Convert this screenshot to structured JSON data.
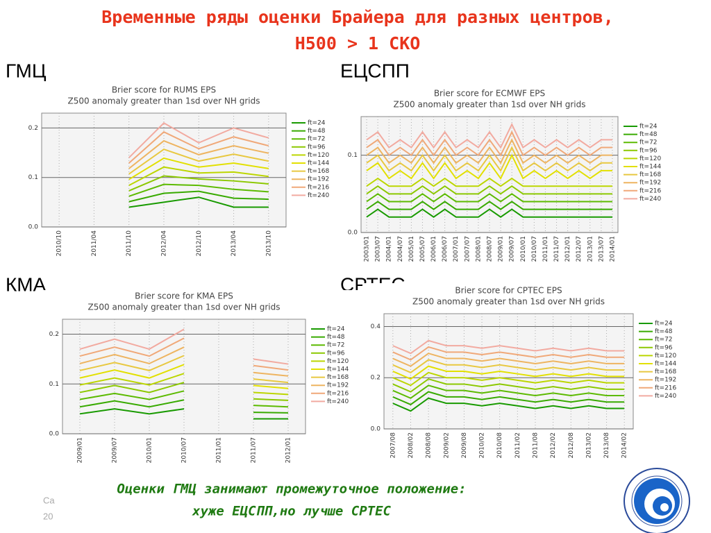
{
  "slide": {
    "title": [
      "Временные ряды оценки Брайера для разных центров,",
      "Н500 > 1 СКО"
    ],
    "centers": [
      "ГМЦ",
      "ЕЦСПП",
      "КМА",
      "СРТЕС"
    ],
    "conclusion": [
      "Оценки ГМЦ занимают промежуточное положение:",
      "хуже ЕЦСПП,но лучше СРТЕС"
    ],
    "footer": [
      "Ca",
      "20"
    ]
  },
  "chart_data": [
    {
      "type": "line",
      "title": "Brier score for RUMS EPS",
      "subtitle": "Z500 anomaly greater than 1sd over NH grids",
      "categories": [
        "2010/10",
        "2011/04",
        "2011/10",
        "2012/04",
        "2012/10",
        "2013/04",
        "2013/10"
      ],
      "ylim": [
        0,
        0.23
      ],
      "yticks": [
        {
          "value": 0,
          "label": "0.0"
        },
        0.1,
        0.2
      ],
      "grid": true,
      "series": [
        {
          "name": "ft=24",
          "color": "#189a00",
          "values": [
            null,
            null,
            0.04,
            0.05,
            0.06,
            0.04,
            0.04
          ]
        },
        {
          "name": "ft=48",
          "color": "#38aa00",
          "values": [
            null,
            null,
            0.051,
            0.068,
            0.072,
            0.058,
            0.056
          ]
        },
        {
          "name": "ft=72",
          "color": "#5cba00",
          "values": [
            null,
            null,
            0.062,
            0.086,
            0.084,
            0.076,
            0.071
          ]
        },
        {
          "name": "ft=96",
          "color": "#8cc800",
          "values": [
            null,
            null,
            0.073,
            0.103,
            0.097,
            0.093,
            0.087
          ]
        },
        {
          "name": "ft=120",
          "color": "#bcd600",
          "values": [
            null,
            null,
            0.084,
            0.121,
            0.109,
            0.111,
            0.102
          ]
        },
        {
          "name": "ft=144",
          "color": "#e2e000",
          "values": [
            null,
            null,
            0.096,
            0.139,
            0.121,
            0.129,
            0.118
          ]
        },
        {
          "name": "ft=168",
          "color": "#e8c840",
          "values": [
            null,
            null,
            0.107,
            0.157,
            0.133,
            0.147,
            0.133
          ]
        },
        {
          "name": "ft=192",
          "color": "#eeb460",
          "values": [
            null,
            null,
            0.118,
            0.174,
            0.146,
            0.164,
            0.149
          ]
        },
        {
          "name": "ft=216",
          "color": "#f0a878",
          "values": [
            null,
            null,
            0.129,
            0.192,
            0.158,
            0.182,
            0.164
          ]
        },
        {
          "name": "ft=240",
          "color": "#f2aaa0",
          "values": [
            null,
            null,
            0.14,
            0.21,
            0.17,
            0.2,
            0.18
          ]
        }
      ]
    },
    {
      "type": "line",
      "title": "Brier score for ECMWF EPS",
      "subtitle": "Z500 anomaly greater than 1sd over NH grids",
      "categories": [
        "2003/01",
        "2003/07",
        "2004/01",
        "2004/07",
        "2005/01",
        "2005/07",
        "2006/01",
        "2006/07",
        "2007/01",
        "2007/07",
        "2008/01",
        "2008/07",
        "2009/01",
        "2009/07",
        "2010/01",
        "2010/07",
        "2011/01",
        "2011/07",
        "2012/01",
        "2012/07",
        "2013/01",
        "2013/07",
        "2014/01"
      ],
      "ylim": [
        0,
        0.15
      ],
      "yticks": [
        {
          "value": 0,
          "label": "0.0"
        },
        0.1
      ],
      "grid": true,
      "series": [
        {
          "name": "ft=24",
          "color": "#189a00",
          "values": [
            0.02,
            0.03,
            0.02,
            0.02,
            0.02,
            0.03,
            0.02,
            0.03,
            0.02,
            0.02,
            0.02,
            0.03,
            0.02,
            0.03,
            0.02,
            0.02,
            0.02,
            0.02,
            0.02,
            0.02,
            0.02,
            0.02,
            0.02
          ]
        },
        {
          "name": "ft=48",
          "color": "#38aa00",
          "values": [
            0.03,
            0.04,
            0.03,
            0.03,
            0.03,
            0.04,
            0.03,
            0.04,
            0.03,
            0.03,
            0.03,
            0.04,
            0.03,
            0.04,
            0.03,
            0.03,
            0.03,
            0.03,
            0.03,
            0.03,
            0.03,
            0.03,
            0.03
          ]
        },
        {
          "name": "ft=72",
          "color": "#5cba00",
          "values": [
            0.04,
            0.05,
            0.04,
            0.04,
            0.04,
            0.05,
            0.04,
            0.05,
            0.04,
            0.04,
            0.04,
            0.05,
            0.04,
            0.05,
            0.04,
            0.04,
            0.04,
            0.04,
            0.04,
            0.04,
            0.04,
            0.04,
            0.04
          ]
        },
        {
          "name": "ft=96",
          "color": "#8cc800",
          "values": [
            0.05,
            0.06,
            0.05,
            0.05,
            0.05,
            0.06,
            0.05,
            0.06,
            0.05,
            0.05,
            0.05,
            0.06,
            0.05,
            0.06,
            0.05,
            0.05,
            0.05,
            0.05,
            0.05,
            0.05,
            0.05,
            0.05,
            0.05
          ]
        },
        {
          "name": "ft=120",
          "color": "#bcd600",
          "values": [
            0.06,
            0.07,
            0.06,
            0.06,
            0.06,
            0.07,
            0.06,
            0.07,
            0.06,
            0.06,
            0.06,
            0.07,
            0.06,
            0.07,
            0.06,
            0.06,
            0.06,
            0.06,
            0.06,
            0.06,
            0.06,
            0.06,
            0.06
          ]
        },
        {
          "name": "ft=144",
          "color": "#e2e000",
          "values": [
            0.08,
            0.09,
            0.07,
            0.08,
            0.07,
            0.09,
            0.07,
            0.09,
            0.07,
            0.08,
            0.07,
            0.09,
            0.07,
            0.1,
            0.07,
            0.08,
            0.07,
            0.08,
            0.07,
            0.08,
            0.07,
            0.08,
            0.08
          ]
        },
        {
          "name": "ft=168",
          "color": "#e8c840",
          "values": [
            0.09,
            0.1,
            0.08,
            0.09,
            0.08,
            0.1,
            0.08,
            0.1,
            0.08,
            0.09,
            0.08,
            0.1,
            0.08,
            0.11,
            0.08,
            0.09,
            0.08,
            0.09,
            0.08,
            0.09,
            0.08,
            0.09,
            0.09
          ]
        },
        {
          "name": "ft=192",
          "color": "#eeb460",
          "values": [
            0.1,
            0.11,
            0.09,
            0.1,
            0.09,
            0.11,
            0.09,
            0.11,
            0.09,
            0.1,
            0.09,
            0.11,
            0.09,
            0.12,
            0.09,
            0.1,
            0.09,
            0.1,
            0.09,
            0.1,
            0.09,
            0.1,
            0.1
          ]
        },
        {
          "name": "ft=216",
          "color": "#f0a878",
          "values": [
            0.11,
            0.12,
            0.1,
            0.11,
            0.1,
            0.12,
            0.1,
            0.12,
            0.1,
            0.11,
            0.1,
            0.12,
            0.1,
            0.13,
            0.1,
            0.11,
            0.1,
            0.11,
            0.1,
            0.11,
            0.1,
            0.11,
            0.11
          ]
        },
        {
          "name": "ft=240",
          "color": "#f2aaa0",
          "values": [
            0.12,
            0.13,
            0.11,
            0.12,
            0.11,
            0.13,
            0.11,
            0.13,
            0.11,
            0.12,
            0.11,
            0.13,
            0.11,
            0.14,
            0.11,
            0.12,
            0.11,
            0.12,
            0.11,
            0.12,
            0.11,
            0.12,
            0.12
          ]
        }
      ]
    },
    {
      "type": "line",
      "title": "Brier score for KMA EPS",
      "subtitle": "Z500 anomaly greater than 1sd over NH grids",
      "categories": [
        "2009/01",
        "2009/07",
        "2010/01",
        "2010/07",
        "2011/01",
        "2011/07",
        "2012/01"
      ],
      "ylim": [
        0,
        0.23
      ],
      "yticks": [
        {
          "value": 0,
          "label": "0.0"
        },
        0.1,
        0.2
      ],
      "grid": true,
      "series": [
        {
          "name": "ft=24",
          "color": "#189a00",
          "values": [
            0.04,
            0.05,
            0.04,
            0.05,
            null,
            0.03,
            0.03
          ]
        },
        {
          "name": "ft=48",
          "color": "#38aa00",
          "values": [
            0.054,
            0.066,
            0.054,
            0.068,
            null,
            0.043,
            0.042
          ]
        },
        {
          "name": "ft=72",
          "color": "#5cba00",
          "values": [
            0.069,
            0.081,
            0.069,
            0.086,
            null,
            0.057,
            0.054
          ]
        },
        {
          "name": "ft=96",
          "color": "#8cc800",
          "values": [
            0.083,
            0.097,
            0.083,
            0.103,
            null,
            0.07,
            0.067
          ]
        },
        {
          "name": "ft=120",
          "color": "#bcd600",
          "values": [
            0.098,
            0.112,
            0.098,
            0.121,
            null,
            0.083,
            0.079
          ]
        },
        {
          "name": "ft=144",
          "color": "#e2e000",
          "values": [
            0.112,
            0.128,
            0.112,
            0.139,
            null,
            0.097,
            0.091
          ]
        },
        {
          "name": "ft=168",
          "color": "#e8c840",
          "values": [
            0.127,
            0.143,
            0.127,
            0.157,
            null,
            0.11,
            0.103
          ]
        },
        {
          "name": "ft=192",
          "color": "#eeb460",
          "values": [
            0.141,
            0.159,
            0.141,
            0.174,
            null,
            0.123,
            0.116
          ]
        },
        {
          "name": "ft=216",
          "color": "#f0a878",
          "values": [
            0.156,
            0.174,
            0.156,
            0.192,
            null,
            0.137,
            0.128
          ]
        },
        {
          "name": "ft=240",
          "color": "#f2aaa0",
          "values": [
            0.17,
            0.19,
            0.17,
            0.21,
            null,
            0.15,
            0.14
          ]
        }
      ]
    },
    {
      "type": "line",
      "title": "Brier score for CPTEC EPS",
      "subtitle": "Z500 anomaly greater than 1sd over NH grids",
      "categories": [
        "2007/08",
        "2008/02",
        "2008/08",
        "2009/02",
        "2009/08",
        "2010/02",
        "2010/08",
        "2011/02",
        "2011/08",
        "2012/02",
        "2012/08",
        "2013/02",
        "2013/08",
        "2014/02"
      ],
      "ylim": [
        0,
        0.45
      ],
      "yticks": [
        {
          "value": 0,
          "label": "0.0"
        },
        0.2,
        0.4
      ],
      "grid": true,
      "series": [
        {
          "name": "ft=24",
          "color": "#189a00",
          "values": [
            0.1,
            0.07,
            0.12,
            0.1,
            0.1,
            0.09,
            0.1,
            0.09,
            0.08,
            0.09,
            0.08,
            0.09,
            0.08,
            0.08
          ]
        },
        {
          "name": "ft=48",
          "color": "#38aa00",
          "values": [
            0.125,
            0.095,
            0.145,
            0.125,
            0.125,
            0.115,
            0.125,
            0.115,
            0.105,
            0.115,
            0.105,
            0.115,
            0.105,
            0.105
          ]
        },
        {
          "name": "ft=72",
          "color": "#5cba00",
          "values": [
            0.15,
            0.12,
            0.17,
            0.15,
            0.15,
            0.14,
            0.15,
            0.14,
            0.13,
            0.14,
            0.13,
            0.14,
            0.13,
            0.13
          ]
        },
        {
          "name": "ft=96",
          "color": "#8cc800",
          "values": [
            0.175,
            0.145,
            0.195,
            0.175,
            0.175,
            0.165,
            0.175,
            0.165,
            0.155,
            0.165,
            0.155,
            0.165,
            0.155,
            0.155
          ]
        },
        {
          "name": "ft=120",
          "color": "#bcd600",
          "values": [
            0.2,
            0.17,
            0.22,
            0.2,
            0.2,
            0.19,
            0.2,
            0.19,
            0.18,
            0.19,
            0.18,
            0.19,
            0.18,
            0.18
          ]
        },
        {
          "name": "ft=144",
          "color": "#e2e000",
          "values": [
            0.225,
            0.195,
            0.245,
            0.225,
            0.225,
            0.215,
            0.225,
            0.215,
            0.205,
            0.215,
            0.205,
            0.215,
            0.205,
            0.205
          ]
        },
        {
          "name": "ft=168",
          "color": "#e8c840",
          "values": [
            0.25,
            0.22,
            0.27,
            0.25,
            0.25,
            0.24,
            0.25,
            0.24,
            0.23,
            0.24,
            0.23,
            0.24,
            0.23,
            0.23
          ]
        },
        {
          "name": "ft=192",
          "color": "#eeb460",
          "values": [
            0.275,
            0.245,
            0.295,
            0.275,
            0.275,
            0.265,
            0.275,
            0.265,
            0.255,
            0.265,
            0.255,
            0.265,
            0.255,
            0.255
          ]
        },
        {
          "name": "ft=216",
          "color": "#f0a878",
          "values": [
            0.3,
            0.27,
            0.32,
            0.3,
            0.3,
            0.29,
            0.3,
            0.29,
            0.28,
            0.29,
            0.28,
            0.29,
            0.28,
            0.28
          ]
        },
        {
          "name": "ft=240",
          "color": "#f2aaa0",
          "values": [
            0.325,
            0.295,
            0.345,
            0.325,
            0.325,
            0.315,
            0.325,
            0.315,
            0.305,
            0.315,
            0.305,
            0.315,
            0.305,
            0.305
          ]
        }
      ]
    }
  ]
}
